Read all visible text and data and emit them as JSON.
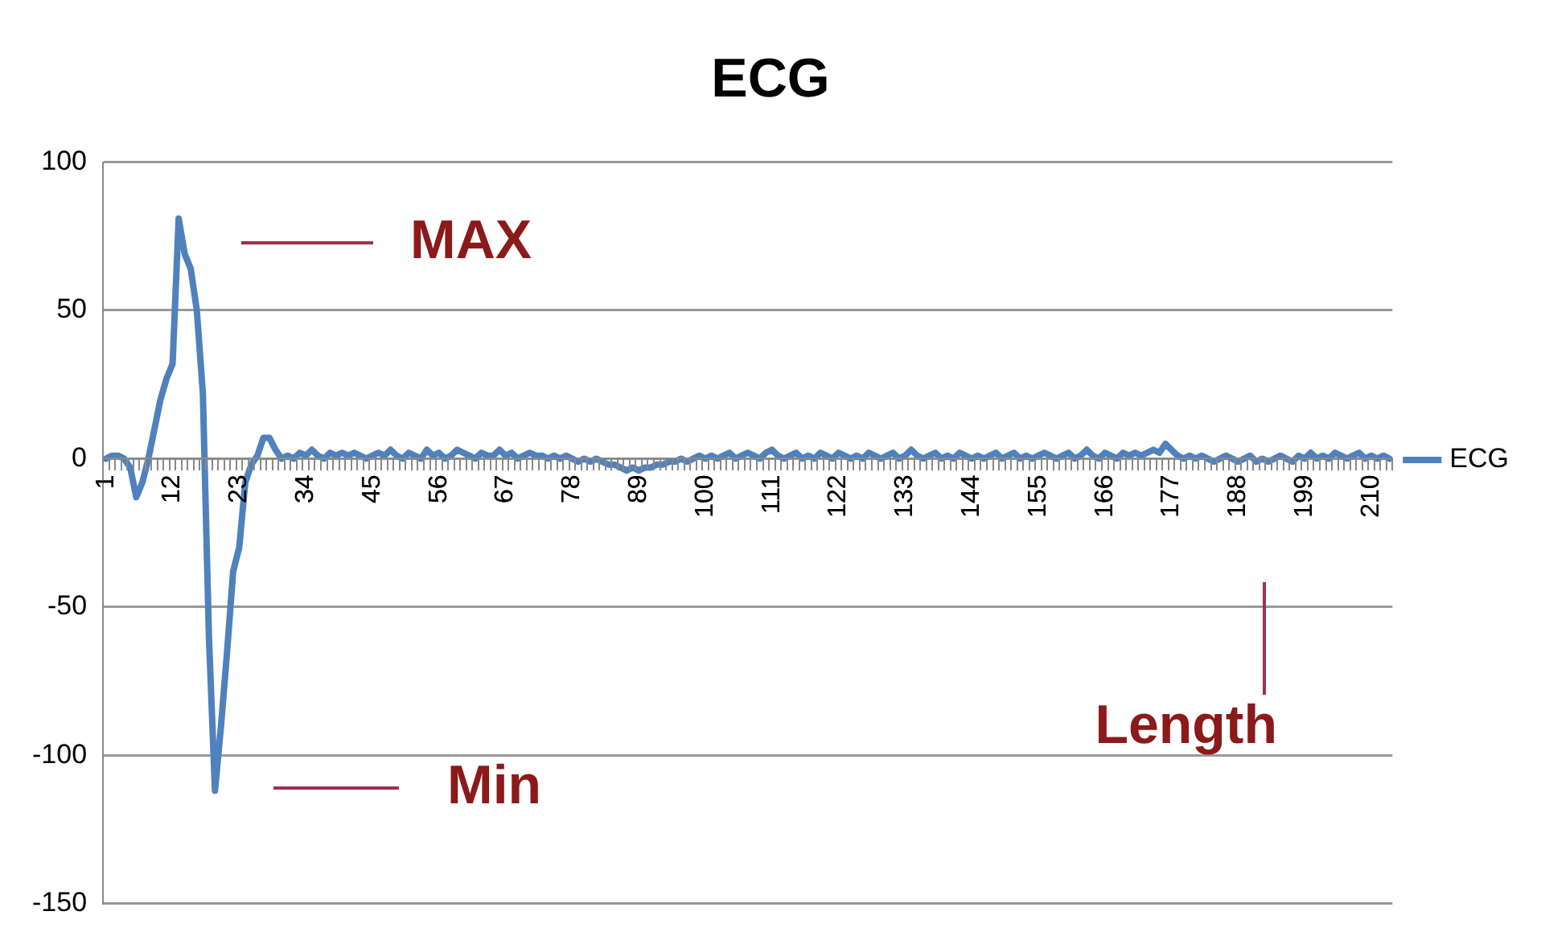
{
  "chart_data": {
    "type": "line",
    "title": "ECG",
    "categories": [
      "1",
      null,
      null,
      null,
      null,
      null,
      null,
      null,
      null,
      null,
      null,
      "12",
      null,
      null,
      null,
      null,
      null,
      null,
      null,
      null,
      null,
      null,
      "23",
      null,
      null,
      null,
      null,
      null,
      null,
      null,
      null,
      null,
      null,
      "34",
      null,
      null,
      null,
      null,
      null,
      null,
      null,
      null,
      null,
      null,
      "45",
      null,
      null,
      null,
      null,
      null,
      null,
      null,
      null,
      null,
      null,
      "56",
      null,
      null,
      null,
      null,
      null,
      null,
      null,
      null,
      null,
      null,
      "67",
      null,
      null,
      null,
      null,
      null,
      null,
      null,
      null,
      null,
      null,
      "78",
      null,
      null,
      null,
      null,
      null,
      null,
      null,
      null,
      null,
      null,
      "89",
      null,
      null,
      null,
      null,
      null,
      null,
      null,
      null,
      null,
      null,
      "100",
      null,
      null,
      null,
      null,
      null,
      null,
      null,
      null,
      null,
      null,
      "111",
      null,
      null,
      null,
      null,
      null,
      null,
      null,
      null,
      null,
      null,
      "122",
      null,
      null,
      null,
      null,
      null,
      null,
      null,
      null,
      null,
      null,
      "133",
      null,
      null,
      null,
      null,
      null,
      null,
      null,
      null,
      null,
      null,
      "144",
      null,
      null,
      null,
      null,
      null,
      null,
      null,
      null,
      null,
      null,
      "155",
      null,
      null,
      null,
      null,
      null,
      null,
      null,
      null,
      null,
      null,
      "166",
      null,
      null,
      null,
      null,
      null,
      null,
      null,
      null,
      null,
      null,
      "177",
      null,
      null,
      null,
      null,
      null,
      null,
      null,
      null,
      null,
      null,
      "188",
      null,
      null,
      null,
      null,
      null,
      null,
      null,
      null,
      null,
      null,
      "199",
      null,
      null,
      null,
      null,
      null,
      null,
      null,
      null,
      null,
      null,
      "210",
      null,
      null,
      null
    ],
    "series": [
      {
        "name": "ECG",
        "color": "#4f81bd",
        "values": [
          0,
          1,
          1,
          0,
          -3,
          -13,
          -8,
          0,
          10,
          20,
          27,
          32,
          81,
          69,
          64,
          50,
          22,
          -60,
          -112,
          -90,
          -65,
          -38,
          -30,
          -8,
          -2,
          1,
          7,
          7,
          3,
          0,
          1,
          0,
          2,
          1,
          3,
          1,
          0,
          2,
          1,
          2,
          1,
          2,
          1,
          0,
          1,
          2,
          1,
          3,
          1,
          0,
          2,
          1,
          0,
          3,
          1,
          2,
          0,
          1,
          3,
          2,
          1,
          0,
          2,
          1,
          1,
          3,
          1,
          2,
          0,
          1,
          2,
          1,
          1,
          0,
          1,
          0,
          1,
          0,
          -1,
          0,
          -1,
          0,
          -1,
          -2,
          -2,
          -3,
          -4,
          -3,
          -4,
          -3,
          -3,
          -2,
          -2,
          -1,
          -1,
          0,
          -1,
          0,
          1,
          0,
          1,
          0,
          1,
          2,
          0,
          1,
          2,
          1,
          0,
          2,
          3,
          1,
          0,
          1,
          2,
          0,
          1,
          0,
          2,
          1,
          0,
          2,
          1,
          0,
          1,
          0,
          2,
          1,
          0,
          1,
          2,
          0,
          1,
          3,
          1,
          0,
          1,
          2,
          0,
          1,
          0,
          2,
          1,
          0,
          1,
          0,
          1,
          2,
          0,
          1,
          2,
          0,
          1,
          0,
          1,
          2,
          1,
          0,
          1,
          2,
          0,
          1,
          3,
          1,
          0,
          2,
          1,
          0,
          2,
          1,
          2,
          1,
          2,
          3,
          2,
          5,
          3,
          1,
          0,
          1,
          0,
          1,
          0,
          -1,
          0,
          1,
          0,
          -1,
          0,
          1,
          -1,
          0,
          -1,
          0,
          1,
          0,
          -1,
          1,
          0,
          2,
          0,
          1,
          0,
          2,
          1,
          0,
          1,
          2,
          0,
          1,
          0,
          1,
          0
        ]
      }
    ],
    "ylim": [
      -150,
      100
    ],
    "yticks": [
      -150,
      -100,
      -50,
      0,
      50,
      100
    ],
    "grid": "y",
    "legend": "right",
    "marker": "none",
    "line_style": "solid",
    "annotations": [
      "MAX",
      "Min",
      "Length"
    ]
  }
}
